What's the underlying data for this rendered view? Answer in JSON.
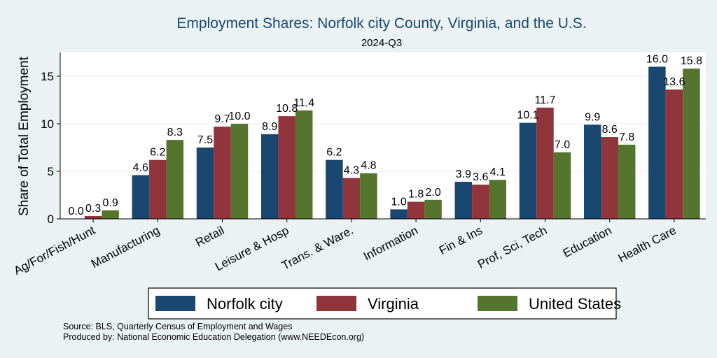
{
  "chart_data": {
    "type": "bar",
    "title": "Employment Shares: Norfolk city County, Virginia, and the U.S.",
    "subtitle": "2024-Q3",
    "ylabel": "Share of Total Employment",
    "xlabel": "",
    "ylim": [
      0,
      17.5
    ],
    "yticks": [
      "0",
      "5",
      "10",
      "15"
    ],
    "categories": [
      "Ag/For/Fish/Hunt",
      "Manufacturing",
      "Retail",
      "Leisure & Hosp",
      "Trans. & Ware.",
      "Information",
      "Fin & Ins",
      "Prof, Sci, Tech",
      "Education",
      "Health Care"
    ],
    "series": [
      {
        "name": "Norfolk city",
        "color": "#1a476f",
        "values": [
          0.0,
          4.6,
          7.5,
          8.9,
          6.2,
          1.0,
          3.9,
          10.1,
          9.9,
          16.0
        ],
        "labels": [
          "0.0",
          "4.6",
          "7.5",
          "8.9",
          "6.2",
          "1.0",
          "3.9",
          "10.1",
          "9.9",
          "16.0"
        ]
      },
      {
        "name": "Virginia",
        "color": "#90353b",
        "values": [
          0.3,
          6.2,
          9.7,
          10.8,
          4.3,
          1.8,
          3.6,
          11.7,
          8.6,
          13.6
        ],
        "labels": [
          "0.3",
          "6.2",
          "9.7",
          "10.8",
          "4.3",
          "1.8",
          "3.6",
          "11.7",
          "8.6",
          "13.6"
        ]
      },
      {
        "name": "United States",
        "color": "#55752f",
        "values": [
          0.9,
          8.3,
          10.0,
          11.4,
          4.8,
          2.0,
          4.1,
          7.0,
          7.8,
          15.8
        ],
        "labels": [
          "0.9",
          "8.3",
          "10.0",
          "11.4",
          "4.8",
          "2.0",
          "4.1",
          "7.0",
          "7.8",
          "15.8"
        ]
      }
    ],
    "legend": "bottom",
    "grid": true
  },
  "footer": {
    "source": "Source: BLS, Quarterly Census of Employment and Wages",
    "produced": "Produced by: National Economic Education Delegation (www.NEEDEcon.org)"
  }
}
